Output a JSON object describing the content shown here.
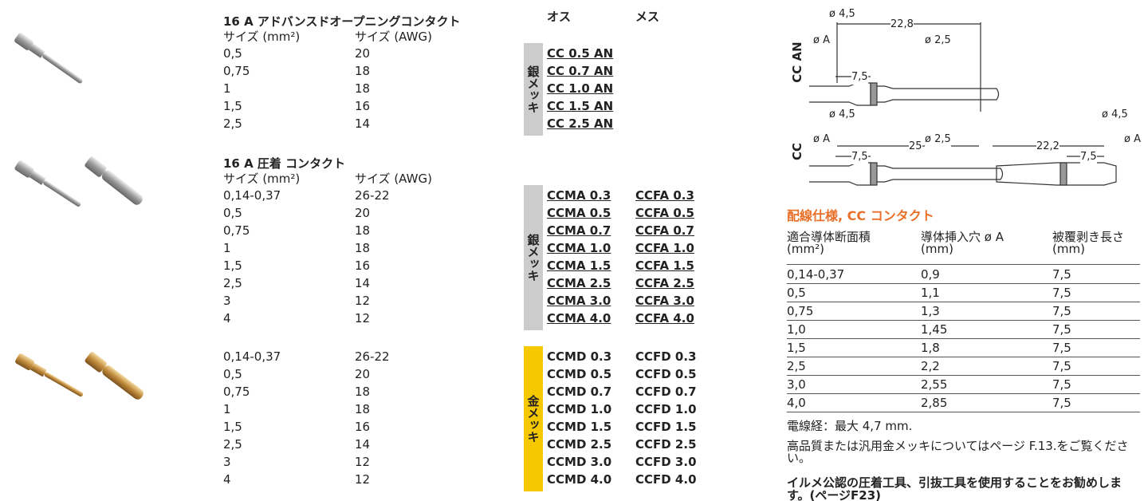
{
  "part_headers": [
    "オス",
    "メス"
  ],
  "sections": [
    {
      "title": "16 A アドバンスドオープニングコンタクト",
      "size_headers": [
        "サイズ (mm²)",
        "サイズ (AWG)"
      ],
      "rows": [
        [
          "0,5",
          "20"
        ],
        [
          "0,75",
          "18"
        ],
        [
          "1",
          "18"
        ],
        [
          "1,5",
          "16"
        ],
        [
          "2,5",
          "14"
        ]
      ],
      "plating": "銀メッキ",
      "male": [
        "CC 0.5 AN",
        "CC 0.7 AN",
        "CC 1.0 AN",
        "CC 1.5 AN",
        "CC 2.5 AN"
      ]
    },
    {
      "title": "16 A 圧着 コンタクト",
      "size_headers": [
        "サイズ (mm²)",
        "サイズ (AWG)"
      ],
      "rows": [
        [
          "0,14-0,37",
          "26-22"
        ],
        [
          "0,5",
          "20"
        ],
        [
          "0,75",
          "18"
        ],
        [
          "1",
          "18"
        ],
        [
          "1,5",
          "16"
        ],
        [
          "2,5",
          "14"
        ],
        [
          "3",
          "12"
        ],
        [
          "4",
          "12"
        ]
      ],
      "plating": "銀メッキ",
      "male": [
        "CCMA 0.3",
        "CCMA 0.5",
        "CCMA 0.7",
        "CCMA 1.0",
        "CCMA 1.5",
        "CCMA 2.5",
        "CCMA 3.0",
        "CCMA 4.0"
      ],
      "female": [
        "CCFA 0.3",
        "CCFA 0.5",
        "CCFA 0.7",
        "CCFA 1.0",
        "CCFA 1.5",
        "CCFA 2.5",
        "CCFA 3.0",
        "CCFA 4.0"
      ]
    },
    {
      "rows": [
        [
          "0,14-0,37",
          "26-22"
        ],
        [
          "0,5",
          "20"
        ],
        [
          "0,75",
          "18"
        ],
        [
          "1",
          "18"
        ],
        [
          "1,5",
          "16"
        ],
        [
          "2,5",
          "14"
        ],
        [
          "3",
          "12"
        ],
        [
          "4",
          "12"
        ]
      ],
      "plating": "金メッキ",
      "male": [
        "CCMD 0.3",
        "CCMD 0.5",
        "CCMD 0.7",
        "CCMD 1.0",
        "CCMD 1.5",
        "CCMD 2.5",
        "CCMD 3.0",
        "CCMD 4.0"
      ],
      "female": [
        "CCFD 0.3",
        "CCFD 0.5",
        "CCFD 0.7",
        "CCFD 1.0",
        "CCFD 1.5",
        "CCFD 2.5",
        "CCFD 3.0",
        "CCFD 4.0"
      ]
    }
  ],
  "diagrams": [
    {
      "label": "CC AN",
      "dims": [
        "ø 4,5",
        "22,8",
        "ø A",
        "7,5",
        "ø 2,5"
      ]
    },
    {
      "label": "CC",
      "dims": [
        "ø 4,5",
        "25",
        "ø A",
        "7,5",
        "ø 2,5",
        "22,2",
        "ø 4,5",
        "7,5",
        "ø A"
      ]
    }
  ],
  "wiring": {
    "title": "配線仕様, CC コンタクト",
    "headers": [
      "適合導体断面積 (mm²)",
      "導体挿入穴 ø A (mm)",
      "被覆剥き長さ (mm)"
    ],
    "rows": [
      [
        "0,14-0,37",
        "0,9",
        "7,5"
      ],
      [
        "0,5",
        "1,1",
        "7,5"
      ],
      [
        "0,75",
        "1,3",
        "7,5"
      ],
      [
        "1,0",
        "1,45",
        "7,5"
      ],
      [
        "1,5",
        "1,8",
        "7,5"
      ],
      [
        "2,5",
        "2,2",
        "7,5"
      ],
      [
        "3,0",
        "2,55",
        "7,5"
      ],
      [
        "4,0",
        "2,85",
        "7,5"
      ]
    ],
    "notes": [
      "電線経：最大 4,7 mm.",
      "高品質または汎用金メッキについてはページ F.13.をご覧ください。",
      "イルメ公認の圧着工具、引抜工具を使用することをお勧めします。(ページF23)"
    ]
  }
}
